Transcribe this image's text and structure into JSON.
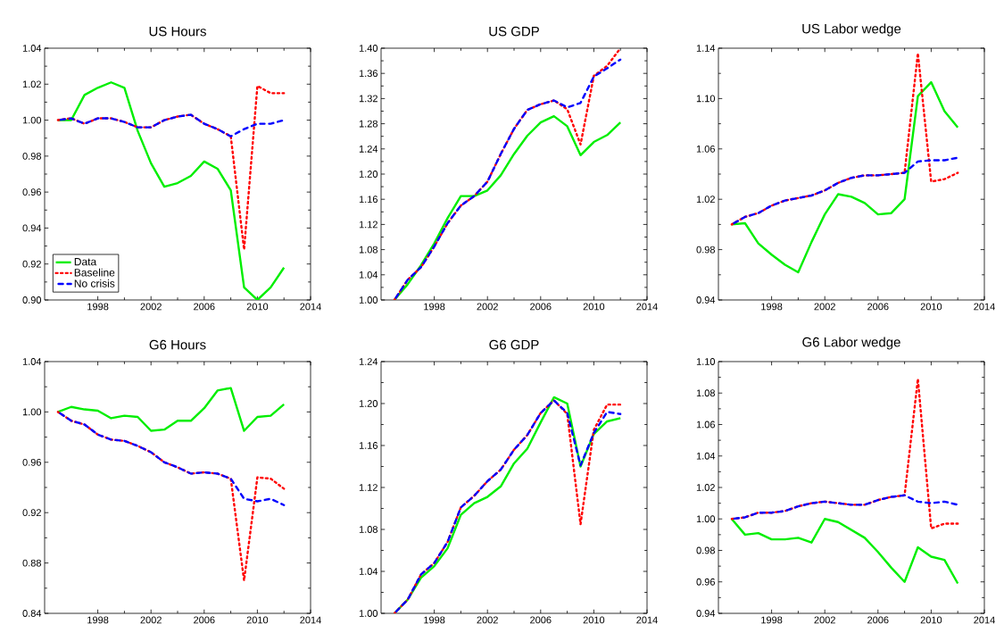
{
  "chart_data": [
    {
      "type": "line",
      "title": "US Hours",
      "x": [
        1995,
        1996,
        1997,
        1998,
        1999,
        2000,
        2001,
        2002,
        2003,
        2004,
        2005,
        2006,
        2007,
        2008,
        2009,
        2010,
        2011,
        2012
      ],
      "xlim": [
        1994,
        2014
      ],
      "xticks": [
        1998,
        2002,
        2006,
        2010,
        2014
      ],
      "ylim": [
        0.9,
        1.04
      ],
      "yticks": [
        {
          "value": 0.9,
          "label": "0.90"
        },
        0.92,
        0.94,
        0.96,
        0.98,
        {
          "value": 1.0,
          "label": "1.00"
        },
        1.02,
        1.04
      ],
      "legend": "bottom left",
      "series": [
        {
          "name": "Data",
          "color": "#00ee00",
          "line_style": "solid",
          "values": [
            1.0,
            1.0,
            1.014,
            1.018,
            1.021,
            1.018,
            0.994,
            0.976,
            0.963,
            0.965,
            0.969,
            0.977,
            0.973,
            0.961,
            0.907,
            0.9,
            0.907,
            0.918
          ]
        },
        {
          "name": "Baseline",
          "color": "#ff0000",
          "line_style": "dotted",
          "values": [
            1.0,
            1.001,
            0.998,
            1.001,
            1.001,
            0.999,
            0.996,
            0.996,
            1.0,
            1.002,
            1.003,
            0.998,
            0.995,
            0.991,
            0.928,
            1.019,
            1.015,
            1.015
          ]
        },
        {
          "name": "No crisis",
          "color": "#0000ff",
          "line_style": "dashed",
          "values": [
            1.0,
            1.001,
            0.998,
            1.001,
            1.001,
            0.999,
            0.996,
            0.996,
            1.0,
            1.002,
            1.003,
            0.998,
            0.995,
            0.991,
            0.995,
            0.998,
            0.998,
            1.0
          ]
        }
      ]
    },
    {
      "type": "line",
      "title": "US GDP",
      "x": [
        1995,
        1996,
        1997,
        1998,
        1999,
        2000,
        2001,
        2002,
        2003,
        2004,
        2005,
        2006,
        2007,
        2008,
        2009,
        2010,
        2011,
        2012
      ],
      "xlim": [
        1994,
        2014
      ],
      "xticks": [
        1998,
        2002,
        2006,
        2010,
        2014
      ],
      "ylim": [
        1.0,
        1.4
      ],
      "yticks": [
        {
          "value": 1.0,
          "label": "1.00"
        },
        1.04,
        1.08,
        1.12,
        1.16,
        {
          "value": 1.2,
          "label": "1.20"
        },
        1.24,
        1.28,
        1.32,
        1.36,
        {
          "value": 1.4,
          "label": "1.40"
        }
      ],
      "series": [
        {
          "color": "#00ee00",
          "line_style": "solid",
          "values": [
            1.0,
            1.025,
            1.055,
            1.09,
            1.13,
            1.165,
            1.165,
            1.174,
            1.198,
            1.232,
            1.261,
            1.282,
            1.292,
            1.276,
            1.23,
            1.251,
            1.262,
            1.282
          ]
        },
        {
          "color": "#ff0000",
          "line_style": "dotted",
          "values": [
            1.0,
            1.032,
            1.052,
            1.085,
            1.122,
            1.15,
            1.165,
            1.188,
            1.232,
            1.272,
            1.302,
            1.311,
            1.317,
            1.303,
            1.247,
            1.356,
            1.372,
            1.4
          ]
        },
        {
          "color": "#0000ff",
          "line_style": "dashed",
          "values": [
            1.0,
            1.032,
            1.052,
            1.085,
            1.122,
            1.15,
            1.165,
            1.188,
            1.232,
            1.272,
            1.302,
            1.311,
            1.317,
            1.306,
            1.313,
            1.355,
            1.368,
            1.382
          ]
        }
      ]
    },
    {
      "type": "line",
      "title": "US Labor wedge",
      "x": [
        1995,
        1996,
        1997,
        1998,
        1999,
        2000,
        2001,
        2002,
        2003,
        2004,
        2005,
        2006,
        2007,
        2008,
        2009,
        2010,
        2011,
        2012
      ],
      "xlim": [
        1994,
        2014
      ],
      "xticks": [
        1998,
        2002,
        2006,
        2010,
        2014
      ],
      "ylim": [
        0.94,
        1.14
      ],
      "yticks": [
        0.94,
        0.98,
        1.02,
        1.06,
        {
          "value": 1.1,
          "label": "1.10"
        },
        1.14
      ],
      "series": [
        {
          "color": "#00ee00",
          "line_style": "solid",
          "values": [
            1.0,
            1.001,
            0.985,
            0.976,
            0.968,
            0.962,
            0.986,
            1.008,
            1.024,
            1.022,
            1.017,
            1.008,
            1.009,
            1.02,
            1.102,
            1.113,
            1.09,
            1.077
          ]
        },
        {
          "color": "#ff0000",
          "line_style": "dotted",
          "values": [
            1.0,
            1.006,
            1.009,
            1.015,
            1.019,
            1.021,
            1.023,
            1.027,
            1.033,
            1.037,
            1.039,
            1.039,
            1.04,
            1.041,
            1.136,
            1.034,
            1.036,
            1.041
          ]
        },
        {
          "color": "#0000ff",
          "line_style": "dashed",
          "values": [
            1.0,
            1.006,
            1.009,
            1.015,
            1.019,
            1.021,
            1.023,
            1.027,
            1.033,
            1.037,
            1.039,
            1.039,
            1.04,
            1.041,
            1.05,
            1.051,
            1.051,
            1.053
          ]
        }
      ]
    },
    {
      "type": "line",
      "title": "G6 Hours",
      "x": [
        1995,
        1996,
        1997,
        1998,
        1999,
        2000,
        2001,
        2002,
        2003,
        2004,
        2005,
        2006,
        2007,
        2008,
        2009,
        2010,
        2011,
        2012
      ],
      "xlim": [
        1994,
        2014
      ],
      "xticks": [
        1998,
        2002,
        2006,
        2010,
        2014
      ],
      "ylim": [
        0.84,
        1.04
      ],
      "yticks": [
        0.84,
        0.88,
        0.92,
        0.96,
        {
          "value": 1.0,
          "label": "1.00"
        },
        1.04
      ],
      "series": [
        {
          "color": "#00ee00",
          "line_style": "solid",
          "values": [
            1.0,
            1.004,
            1.002,
            1.001,
            0.995,
            0.997,
            0.996,
            0.985,
            0.986,
            0.993,
            0.993,
            1.003,
            1.017,
            1.019,
            0.985,
            0.996,
            0.997,
            1.006
          ]
        },
        {
          "color": "#ff0000",
          "line_style": "dotted",
          "values": [
            1.0,
            0.993,
            0.99,
            0.982,
            0.978,
            0.977,
            0.973,
            0.968,
            0.96,
            0.956,
            0.951,
            0.952,
            0.951,
            0.947,
            0.866,
            0.948,
            0.947,
            0.939
          ]
        },
        {
          "color": "#0000ff",
          "line_style": "dashed",
          "values": [
            1.0,
            0.993,
            0.99,
            0.982,
            0.978,
            0.977,
            0.973,
            0.968,
            0.96,
            0.956,
            0.951,
            0.952,
            0.951,
            0.947,
            0.931,
            0.929,
            0.931,
            0.926
          ]
        }
      ]
    },
    {
      "type": "line",
      "title": "G6 GDP",
      "x": [
        1995,
        1996,
        1997,
        1998,
        1999,
        2000,
        2001,
        2002,
        2003,
        2004,
        2005,
        2006,
        2007,
        2008,
        2009,
        2010,
        2011,
        2012
      ],
      "xlim": [
        1994,
        2014
      ],
      "xticks": [
        1998,
        2002,
        2006,
        2010,
        2014
      ],
      "ylim": [
        1.0,
        1.24
      ],
      "yticks": [
        {
          "value": 1.0,
          "label": "1.00"
        },
        1.04,
        1.08,
        1.12,
        1.16,
        {
          "value": 1.2,
          "label": "1.20"
        },
        1.24
      ],
      "series": [
        {
          "color": "#00ee00",
          "line_style": "solid",
          "values": [
            1.0,
            1.013,
            1.034,
            1.045,
            1.062,
            1.094,
            1.105,
            1.111,
            1.121,
            1.143,
            1.157,
            1.182,
            1.206,
            1.2,
            1.14,
            1.171,
            1.183,
            1.186
          ]
        },
        {
          "color": "#ff0000",
          "line_style": "dotted",
          "values": [
            1.0,
            1.013,
            1.037,
            1.048,
            1.068,
            1.101,
            1.112,
            1.126,
            1.137,
            1.156,
            1.17,
            1.191,
            1.203,
            1.19,
            1.085,
            1.175,
            1.199,
            1.199
          ]
        },
        {
          "color": "#0000ff",
          "line_style": "dashed",
          "values": [
            1.0,
            1.013,
            1.037,
            1.048,
            1.068,
            1.101,
            1.112,
            1.126,
            1.137,
            1.156,
            1.17,
            1.191,
            1.203,
            1.191,
            1.141,
            1.172,
            1.192,
            1.19
          ]
        }
      ]
    },
    {
      "type": "line",
      "title": "G6 Labor wedge",
      "x": [
        1995,
        1996,
        1997,
        1998,
        1999,
        2000,
        2001,
        2002,
        2003,
        2004,
        2005,
        2006,
        2007,
        2008,
        2009,
        2010,
        2011,
        2012
      ],
      "xlim": [
        1994,
        2014
      ],
      "xticks": [
        1998,
        2002,
        2006,
        2010,
        2014
      ],
      "ylim": [
        0.94,
        1.1
      ],
      "yticks": [
        0.94,
        0.96,
        0.98,
        {
          "value": 1.0,
          "label": "1.00"
        },
        1.02,
        1.04,
        1.06,
        1.08,
        {
          "value": 1.1,
          "label": "1.10"
        }
      ],
      "series": [
        {
          "color": "#00ee00",
          "line_style": "solid",
          "values": [
            1.0,
            0.99,
            0.991,
            0.987,
            0.987,
            0.988,
            0.985,
            1.0,
            0.998,
            0.993,
            0.988,
            0.979,
            0.969,
            0.96,
            0.982,
            0.976,
            0.974,
            0.959
          ]
        },
        {
          "color": "#ff0000",
          "line_style": "dotted",
          "values": [
            1.0,
            1.001,
            1.004,
            1.004,
            1.005,
            1.008,
            1.01,
            1.011,
            1.01,
            1.009,
            1.009,
            1.012,
            1.014,
            1.015,
            1.089,
            0.994,
            0.997,
            0.997
          ]
        },
        {
          "color": "#0000ff",
          "line_style": "dashed",
          "values": [
            1.0,
            1.001,
            1.004,
            1.004,
            1.005,
            1.008,
            1.01,
            1.011,
            1.01,
            1.009,
            1.009,
            1.012,
            1.014,
            1.015,
            1.011,
            1.01,
            1.011,
            1.009
          ]
        }
      ]
    }
  ]
}
